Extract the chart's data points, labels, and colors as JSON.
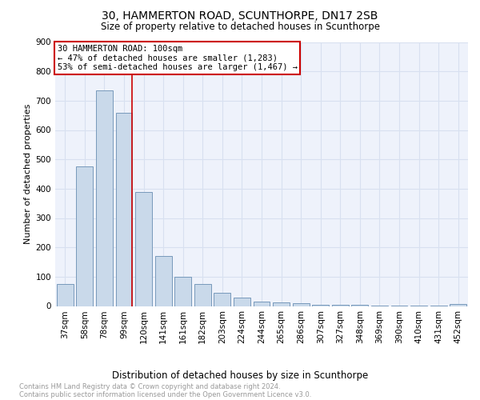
{
  "title": "30, HAMMERTON ROAD, SCUNTHORPE, DN17 2SB",
  "subtitle": "Size of property relative to detached houses in Scunthorpe",
  "xlabel": "Distribution of detached houses by size in Scunthorpe",
  "ylabel": "Number of detached properties",
  "footnote1": "Contains HM Land Registry data © Crown copyright and database right 2024.",
  "footnote2": "Contains public sector information licensed under the Open Government Licence v3.0.",
  "bar_labels": [
    "37sqm",
    "58sqm",
    "78sqm",
    "99sqm",
    "120sqm",
    "141sqm",
    "161sqm",
    "182sqm",
    "203sqm",
    "224sqm",
    "244sqm",
    "265sqm",
    "286sqm",
    "307sqm",
    "327sqm",
    "348sqm",
    "369sqm",
    "390sqm",
    "410sqm",
    "431sqm",
    "452sqm"
  ],
  "bar_values": [
    75,
    475,
    735,
    660,
    390,
    170,
    100,
    75,
    45,
    30,
    15,
    12,
    10,
    5,
    3,
    3,
    2,
    2,
    1,
    1,
    8
  ],
  "bar_color": "#c9d9ea",
  "bar_edge_color": "#7799bb",
  "annotation_line1": "30 HAMMERTON ROAD: 100sqm",
  "annotation_line2": "← 47% of detached houses are smaller (1,283)",
  "annotation_line3": "53% of semi-detached houses are larger (1,467) →",
  "annotation_box_facecolor": "#ffffff",
  "annotation_box_edgecolor": "#cc0000",
  "vline_color": "#cc0000",
  "vline_bin_index": 3,
  "grid_color": "#d8e0f0",
  "background_color": "#eef2fb",
  "ylim": [
    0,
    900
  ],
  "yticks": [
    0,
    100,
    200,
    300,
    400,
    500,
    600,
    700,
    800,
    900
  ],
  "title_fontsize": 10,
  "subtitle_fontsize": 8.5,
  "ylabel_fontsize": 8,
  "xlabel_fontsize": 8.5,
  "tick_fontsize": 7.5,
  "annotation_fontsize": 7.5,
  "footnote_fontsize": 6.0,
  "footnote_color": "#999999"
}
